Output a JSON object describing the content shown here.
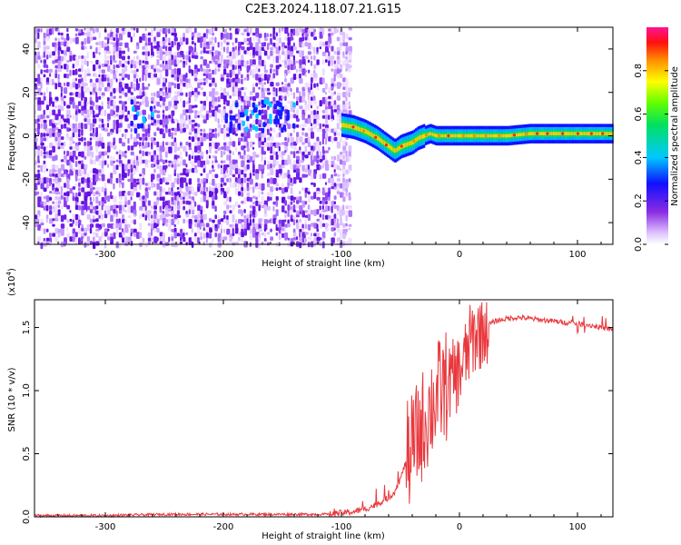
{
  "title": "C2E3.2024.118.07.21.G15",
  "chart_data": [
    {
      "type": "heatmap",
      "xlabel": "Height of straight line (km)",
      "ylabel": "Frequency (Hz)",
      "xlim": [
        -360,
        130
      ],
      "ylim": [
        -50,
        50
      ],
      "x_ticks": [
        -300,
        -200,
        -100,
        0,
        100
      ],
      "y_ticks": [
        -40,
        -20,
        0,
        20,
        40
      ],
      "noise_region_x": [
        -360,
        -100
      ],
      "signal_trace": {
        "x": [
          -100,
          -90,
          -80,
          -70,
          -60,
          -55,
          -50,
          -45,
          -40,
          -35,
          -30,
          -25,
          -20,
          -10,
          0,
          20,
          40,
          60,
          80,
          100,
          120,
          130
        ],
        "freq": [
          5,
          4,
          2,
          -1,
          -5,
          -7,
          -5,
          -4,
          -3,
          -1,
          0,
          1,
          0,
          0,
          0,
          0,
          0,
          1,
          1,
          1,
          1,
          1
        ]
      },
      "colorbar": {
        "label": "Normalized spectral amplitude",
        "range": [
          0.0,
          1.0
        ],
        "ticks": [
          0.0,
          0.2,
          0.4,
          0.6,
          0.8
        ]
      }
    },
    {
      "type": "line",
      "xlabel": "Height of straight line (km)",
      "ylabel": "SNR (10 * v/v)",
      "y_scale_label": "(x10",
      "y_scale_exp": "4",
      "y_scale_close": ")",
      "xlim": [
        -360,
        130
      ],
      "ylim": [
        0,
        1.72
      ],
      "x_ticks": [
        -300,
        -200,
        -100,
        0,
        100
      ],
      "y_ticks": [
        0.0,
        0.5,
        1.0,
        1.5
      ],
      "y_tick_labels": [
        "0.0",
        "0.5",
        "1.0",
        "1.5"
      ],
      "color": "#e8383d",
      "series": [
        {
          "x": [
            -360,
            -300,
            -250,
            -200,
            -150,
            -110,
            -100,
            -90,
            -80,
            -70,
            -60,
            -55,
            -50,
            -45,
            -40,
            -35,
            -30,
            -25,
            -20,
            -15,
            -10,
            -5,
            0,
            5,
            10,
            20,
            30,
            40,
            50,
            60,
            70,
            80,
            90,
            100,
            110,
            120,
            130
          ],
          "values": [
            0.01,
            0.01,
            0.02,
            0.02,
            0.02,
            0.02,
            0.03,
            0.04,
            0.06,
            0.1,
            0.15,
            0.2,
            0.3,
            0.45,
            0.55,
            0.65,
            0.75,
            0.85,
            0.95,
            1.0,
            1.05,
            1.1,
            1.15,
            1.25,
            1.4,
            1.5,
            1.55,
            1.57,
            1.58,
            1.57,
            1.56,
            1.55,
            1.54,
            1.53,
            1.52,
            1.5,
            1.48
          ]
        }
      ]
    }
  ]
}
